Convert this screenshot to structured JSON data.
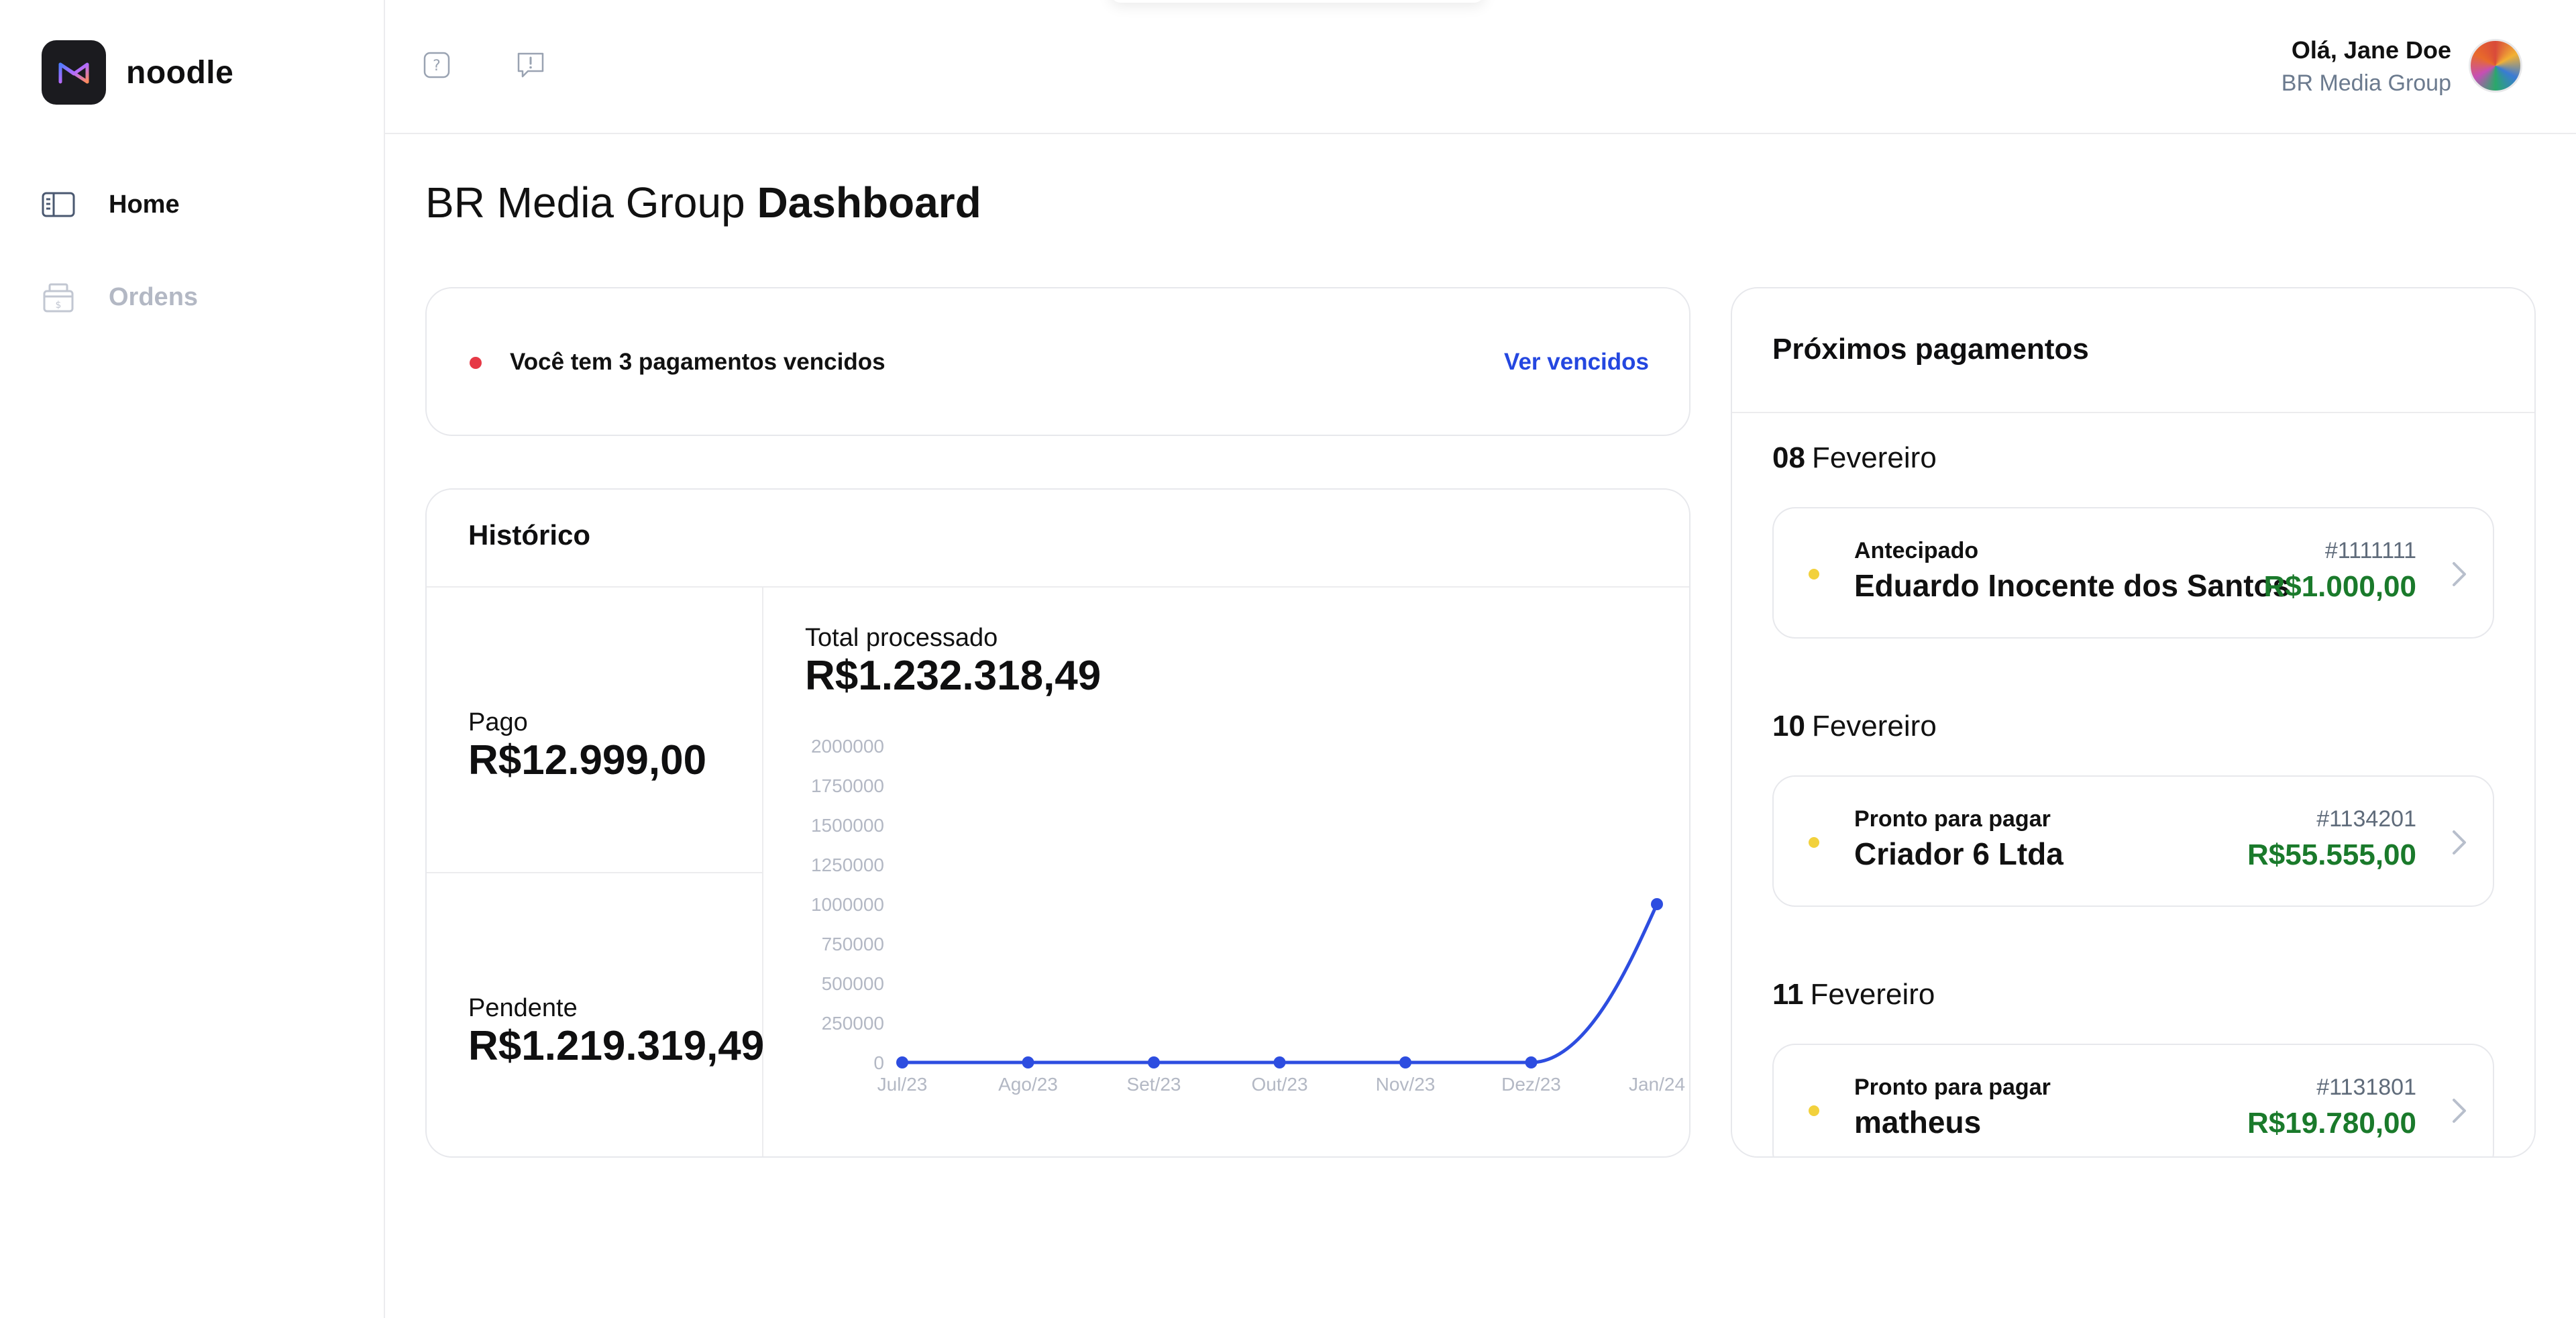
{
  "brand": {
    "name": "noodle",
    "logo_icon": "noodle-logo-icon"
  },
  "sidebar": {
    "items": [
      {
        "label": "Home",
        "icon": "sidebar-panel-icon",
        "active": true
      },
      {
        "label": "Ordens",
        "icon": "cash-register-icon",
        "active": false
      }
    ]
  },
  "topbar": {
    "icons": [
      "help-icon",
      "feedback-icon"
    ],
    "user": {
      "greeting": "Olá, Jane Doe",
      "company": "BR Media Group"
    }
  },
  "page": {
    "title_prefix": "BR Media Group",
    "title_bold": "Dashboard"
  },
  "alert": {
    "text": "Você tem 3 pagamentos vencidos",
    "link": "Ver vencidos",
    "dot_color": "#e63946"
  },
  "historico": {
    "title": "Histórico",
    "pago_label": "Pago",
    "pago_value": "R$12.999,00",
    "pendente_label": "Pendente",
    "pendente_value": "R$1.219.319,49",
    "total_label": "Total processado",
    "total_value": "R$1.232.318,49"
  },
  "chart_data": {
    "type": "line",
    "categories": [
      "Jul/23",
      "Ago/23",
      "Set/23",
      "Out/23",
      "Nov/23",
      "Dez/23",
      "Jan/24"
    ],
    "series": [
      {
        "values": [
          0,
          0,
          0,
          0,
          0,
          0,
          1000000
        ]
      }
    ],
    "y_ticks": [
      0,
      250000,
      500000,
      750000,
      1000000,
      1250000,
      1500000,
      1750000,
      2000000
    ],
    "ylim": [
      0,
      2000000
    ],
    "line_color": "#2d4de0",
    "grid": false,
    "curve": "smooth"
  },
  "proximos": {
    "title": "Próximos pagamentos",
    "groups": [
      {
        "day": "08",
        "month": "Fevereiro",
        "item": {
          "status": "Antecipado",
          "name": "Eduardo Inocente dos Santos",
          "id": "#1111111",
          "amount": "R$1.000,00"
        }
      },
      {
        "day": "10",
        "month": "Fevereiro",
        "item": {
          "status": "Pronto para pagar",
          "name": "Criador 6 Ltda",
          "id": "#1134201",
          "amount": "R$55.555,00"
        }
      },
      {
        "day": "11",
        "month": "Fevereiro",
        "item": {
          "status": "Pronto para pagar",
          "name": "matheus",
          "id": "#1131801",
          "amount": "R$19.780,00"
        }
      }
    ]
  },
  "colors": {
    "accent": "#2447e0",
    "amount": "#1a7a2b",
    "pending_dot": "#f2d13c"
  }
}
